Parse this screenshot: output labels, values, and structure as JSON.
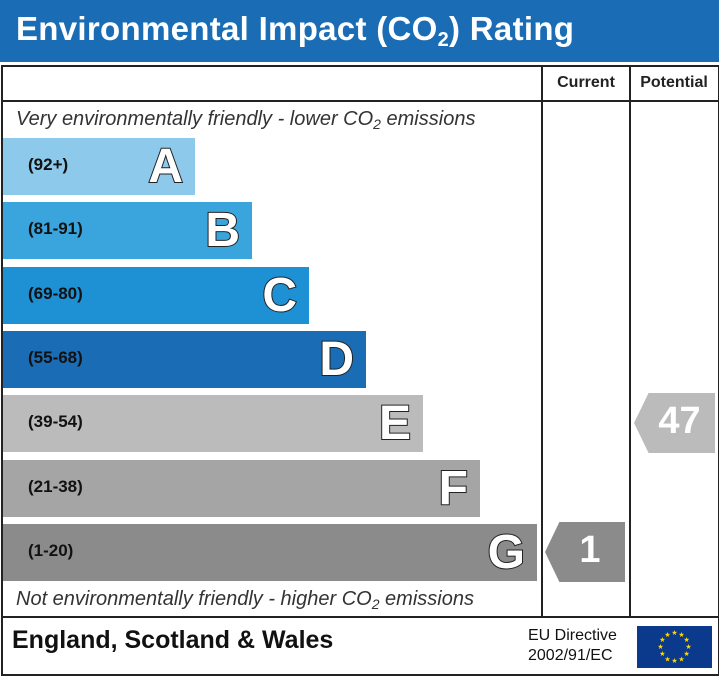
{
  "title": {
    "main": "Environmental Impact (CO",
    "sub": "2",
    "end": ") Rating"
  },
  "columns": {
    "current": "Current",
    "potential": "Potential"
  },
  "captions": {
    "top": {
      "pre": "Very environmentally friendly - lower CO",
      "sub": "2",
      "post": " emissions"
    },
    "bottom": {
      "pre": "Not environmentally friendly - higher CO",
      "sub": "2",
      "post": " emissions"
    }
  },
  "chart_data": {
    "type": "bar",
    "title": "Environmental Impact (CO2) Rating",
    "categories": [
      "A",
      "B",
      "C",
      "D",
      "E",
      "F",
      "G"
    ],
    "ranges": [
      "(92+)",
      "(81-91)",
      "(69-80)",
      "(55-68)",
      "(39-54)",
      "(21-38)",
      "(1-20)"
    ],
    "colors": [
      "#8dc9eb",
      "#3aa5dd",
      "#1e90d4",
      "#1a6db4",
      "#bbbbbb",
      "#a5a5a5",
      "#8b8b8b"
    ],
    "current": {
      "value": 1,
      "band": "G",
      "color": "#8b8b8b"
    },
    "potential": {
      "value": 47,
      "band": "E",
      "color": "#bbbbbb"
    }
  },
  "footer": {
    "region": "England, Scotland & Wales",
    "directive_line1": "EU Directive",
    "directive_line2": "2002/91/EC"
  }
}
